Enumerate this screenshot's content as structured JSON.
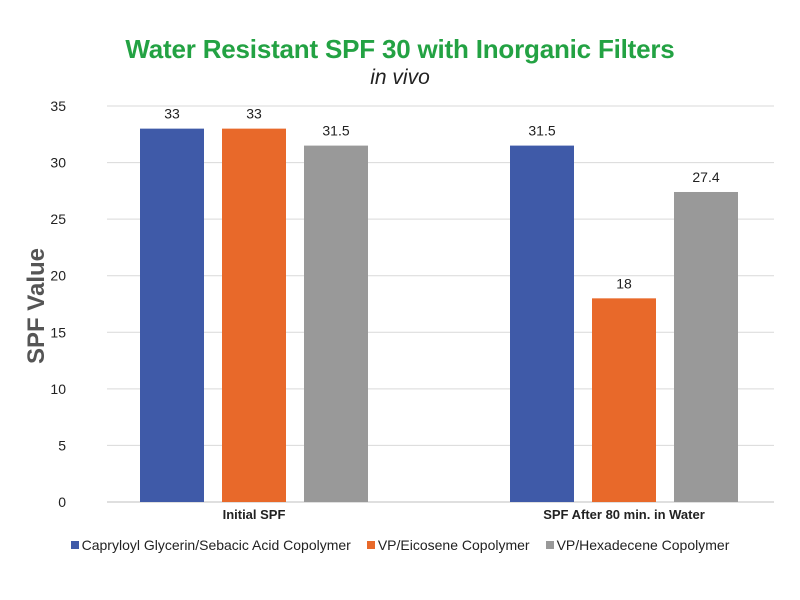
{
  "chart_data": {
    "type": "bar",
    "title": "Water Resistant SPF 30 with Inorganic Filters",
    "subtitle": "in vivo",
    "title_color": "#23A243",
    "xlabel": "",
    "ylabel": "SPF Value",
    "ylim": [
      0,
      35
    ],
    "yticks": [
      "0",
      "5",
      "10",
      "15",
      "20",
      "25",
      "30",
      "35"
    ],
    "grid": true,
    "legend_position": "bottom",
    "categories": [
      "Initial SPF",
      "SPF After 80 min. in Water"
    ],
    "series": [
      {
        "name": "Capryloyl Glycerin/Sebacic Acid Copolymer",
        "color": "#3F5AA8",
        "values": [
          33,
          31.5
        ],
        "labels": [
          "33",
          "31.5"
        ]
      },
      {
        "name": "VP/Eicosene Copolymer",
        "color": "#E8692A",
        "values": [
          33,
          18
        ],
        "labels": [
          "33",
          "18"
        ]
      },
      {
        "name": "VP/Hexadecene Copolymer",
        "color": "#999999",
        "values": [
          31.5,
          27.4
        ],
        "labels": [
          "31.5",
          "27.4"
        ]
      }
    ]
  }
}
